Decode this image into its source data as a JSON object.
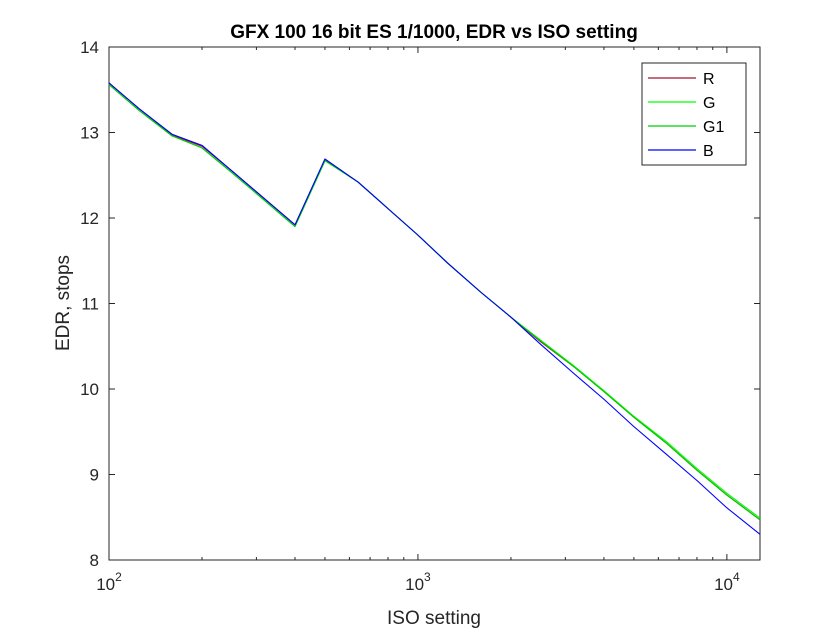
{
  "chart_data": {
    "type": "line",
    "title": "GFX 100 16 bit ES 1/1000, EDR vs ISO setting",
    "xlabel": "ISO setting",
    "ylabel": "EDR, stops",
    "xscale": "log",
    "xlim": [
      100,
      12800
    ],
    "ylim": [
      8,
      14
    ],
    "x_ticks": [
      {
        "base": "10",
        "exp": "2",
        "value": 100
      },
      {
        "base": "10",
        "exp": "3",
        "value": 1000
      },
      {
        "base": "10",
        "exp": "4",
        "value": 10000
      }
    ],
    "y_ticks": [
      "8",
      "9",
      "10",
      "11",
      "12",
      "13",
      "14"
    ],
    "grid": false,
    "legend_position": "top-right",
    "x": [
      100,
      125,
      160,
      200,
      250,
      320,
      400,
      500,
      640,
      800,
      1000,
      1250,
      1600,
      2000,
      2500,
      3200,
      4000,
      5000,
      6400,
      8000,
      10000,
      12800
    ],
    "series": [
      {
        "name": "R",
        "color": "#a2142f",
        "values": [
          13.58,
          13.28,
          12.97,
          12.84,
          12.55,
          12.22,
          11.92,
          12.68,
          12.42,
          12.11,
          11.8,
          11.47,
          11.13,
          10.84,
          10.55,
          10.26,
          9.97,
          9.67,
          9.36,
          9.05,
          8.76,
          8.47
        ]
      },
      {
        "name": "G",
        "color": "#00ff00",
        "values": [
          13.56,
          13.26,
          12.96,
          12.82,
          12.53,
          12.2,
          11.9,
          12.67,
          12.42,
          12.11,
          11.8,
          11.47,
          11.13,
          10.84,
          10.57,
          10.27,
          9.98,
          9.68,
          9.38,
          9.07,
          8.78,
          8.49
        ]
      },
      {
        "name": "G1",
        "color": "#00cc00",
        "values": [
          13.56,
          13.26,
          12.96,
          12.82,
          12.53,
          12.2,
          11.9,
          12.67,
          12.42,
          12.11,
          11.8,
          11.47,
          11.13,
          10.84,
          10.56,
          10.26,
          9.97,
          9.67,
          9.36,
          9.05,
          8.76,
          8.47
        ]
      },
      {
        "name": "B",
        "color": "#0000ff",
        "values": [
          13.58,
          13.28,
          12.98,
          12.85,
          12.55,
          12.22,
          11.92,
          12.69,
          12.42,
          12.11,
          11.8,
          11.47,
          11.13,
          10.84,
          10.52,
          10.18,
          9.88,
          9.56,
          9.23,
          8.93,
          8.61,
          8.3
        ]
      }
    ]
  }
}
